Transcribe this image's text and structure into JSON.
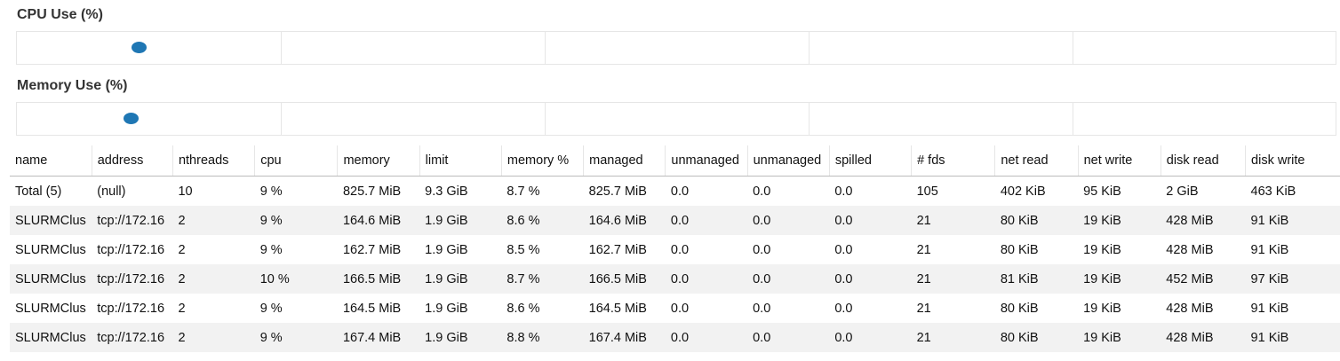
{
  "cpu_section": {
    "title": "CPU Use (%)",
    "workers_cpu_percent": [
      9,
      9,
      10,
      9,
      9
    ]
  },
  "memory_section": {
    "title": "Memory Use (%)",
    "workers_memory_percent": [
      8.6,
      8.5,
      8.7,
      8.6,
      8.8
    ]
  },
  "table": {
    "columns": [
      "name",
      "address",
      "nthreads",
      "cpu",
      "memory",
      "limit",
      "memory %",
      "managed",
      "unmanaged",
      "unmanaged",
      "spilled",
      "# fds",
      "net read",
      "net write",
      "disk read",
      "disk write"
    ],
    "rows": [
      [
        "Total (5)",
        "(null)",
        "10",
        "9 %",
        "825.7 MiB",
        "9.3 GiB",
        "8.7 %",
        "825.7 MiB",
        "0.0",
        "0.0",
        "0.0",
        "105",
        "402 KiB",
        "95 KiB",
        "2 GiB",
        "463 KiB"
      ],
      [
        "SLURMClus",
        "tcp://172.16",
        "2",
        "9 %",
        "164.6 MiB",
        "1.9 GiB",
        "8.6 %",
        "164.6 MiB",
        "0.0",
        "0.0",
        "0.0",
        "21",
        "80 KiB",
        "19 KiB",
        "428 MiB",
        "91 KiB"
      ],
      [
        "SLURMClus",
        "tcp://172.16",
        "2",
        "9 %",
        "162.7 MiB",
        "1.9 GiB",
        "8.5 %",
        "162.7 MiB",
        "0.0",
        "0.0",
        "0.0",
        "21",
        "80 KiB",
        "19 KiB",
        "428 MiB",
        "91 KiB"
      ],
      [
        "SLURMClus",
        "tcp://172.16",
        "2",
        "10 %",
        "166.5 MiB",
        "1.9 GiB",
        "8.7 %",
        "166.5 MiB",
        "0.0",
        "0.0",
        "0.0",
        "21",
        "81 KiB",
        "19 KiB",
        "452 MiB",
        "97 KiB"
      ],
      [
        "SLURMClus",
        "tcp://172.16",
        "2",
        "9 %",
        "164.5 MiB",
        "1.9 GiB",
        "8.6 %",
        "164.5 MiB",
        "0.0",
        "0.0",
        "0.0",
        "21",
        "80 KiB",
        "19 KiB",
        "428 MiB",
        "91 KiB"
      ],
      [
        "SLURMClus",
        "tcp://172.16",
        "2",
        "9 %",
        "167.4 MiB",
        "1.9 GiB",
        "8.8 %",
        "167.4 MiB",
        "0.0",
        "0.0",
        "0.0",
        "21",
        "80 KiB",
        "19 KiB",
        "428 MiB",
        "91 KiB"
      ]
    ]
  },
  "colors": {
    "dot": "#1f77b4",
    "row_stripe": "#f2f2f2",
    "grid": "#e6e6e6"
  }
}
